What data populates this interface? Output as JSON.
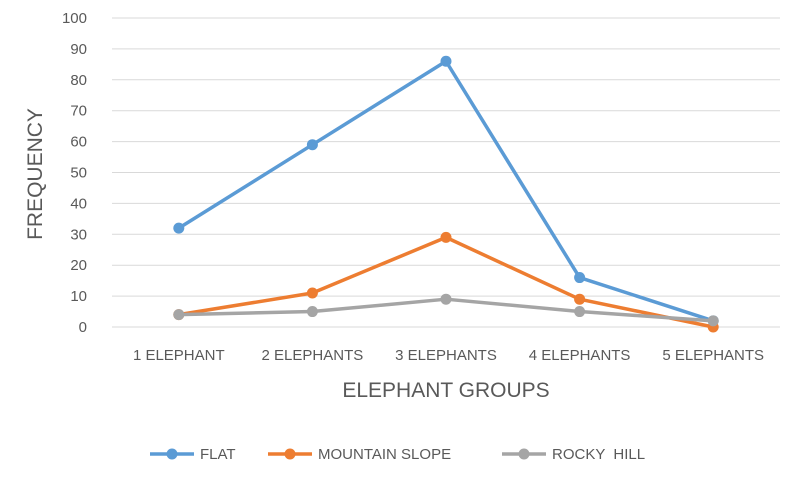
{
  "chart_data": {
    "type": "line",
    "title": "",
    "xlabel": "ELEPHANT GROUPS",
    "ylabel": "FREQUENCY",
    "categories": [
      "1 ELEPHANT",
      "2 ELEPHANTS",
      "3 ELEPHANTS",
      "4 ELEPHANTS",
      "5 ELEPHANTS"
    ],
    "ylim": [
      0,
      100
    ],
    "yticks": [
      0,
      10,
      20,
      30,
      40,
      50,
      60,
      70,
      80,
      90,
      100
    ],
    "grid": true,
    "legend_position": "bottom",
    "series": [
      {
        "name": "FLAT",
        "values": [
          32,
          59,
          86,
          16,
          2
        ],
        "color": "#5B9BD5"
      },
      {
        "name": "MOUNTAIN SLOPE",
        "values": [
          4,
          11,
          29,
          9,
          0
        ],
        "color": "#ED7D31"
      },
      {
        "name": "ROCKY  HILL",
        "values": [
          4,
          5,
          9,
          5,
          2
        ],
        "color": "#A5A5A5"
      }
    ]
  }
}
